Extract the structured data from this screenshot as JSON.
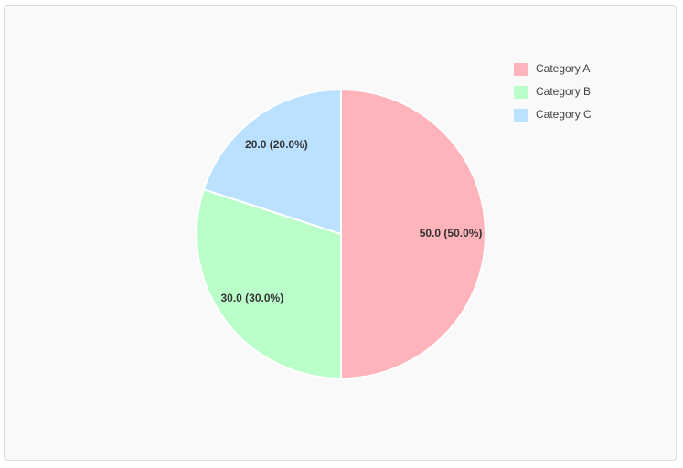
{
  "chart_data": {
    "type": "pie",
    "categories": [
      "Category A",
      "Category B",
      "Category C"
    ],
    "values": [
      50,
      30,
      20
    ],
    "value_labels": [
      "50.0 (50.0%)",
      "30.0 (30.0%)",
      "20.0 (20.0%)"
    ],
    "colors": [
      "#ffb3ba",
      "#baffc9",
      "#bae1ff"
    ],
    "legend": "top-right"
  }
}
